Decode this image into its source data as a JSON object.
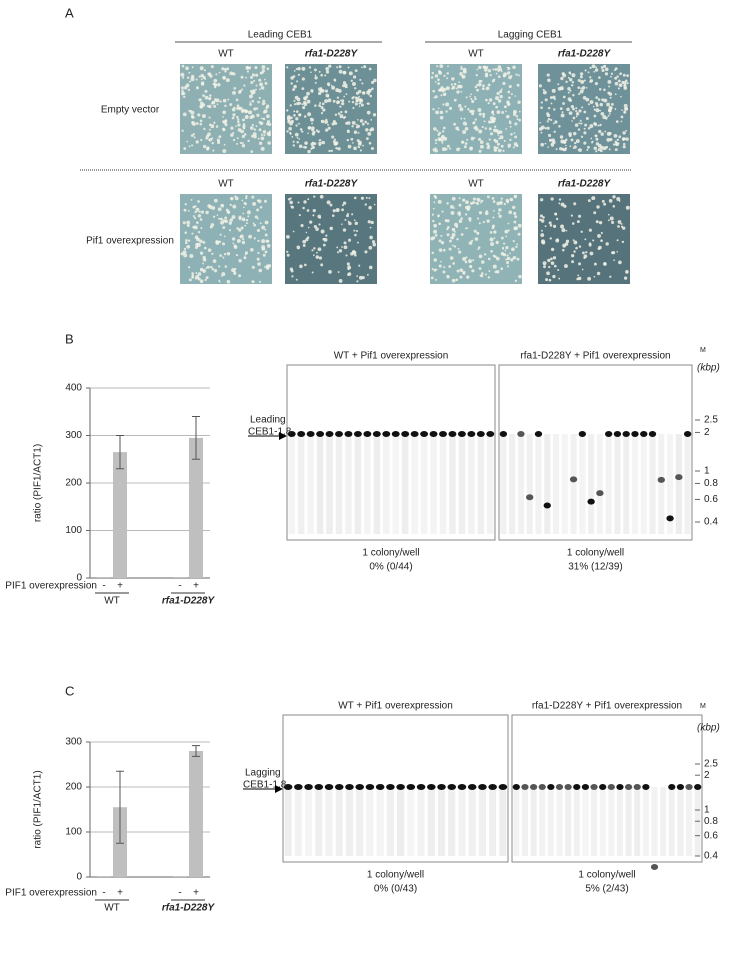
{
  "panel_a": {
    "label": "A",
    "groups": [
      "Leading CEB1",
      "Lagging CEB1"
    ],
    "rows": [
      {
        "label": "Empty vector",
        "columns": [
          "WT",
          "rfa1-D228Y",
          "WT",
          "rfa1-D228Y"
        ]
      },
      {
        "label": "Pif1 overexpression",
        "columns": [
          "WT",
          "rfa1-D228Y",
          "WT",
          "rfa1-D228Y"
        ]
      }
    ]
  },
  "chart_data": [
    {
      "type": "bar",
      "panel": "B",
      "ylabel": "ratio (PIF1/ACT1)",
      "xlabel": "PIF1 overexpression",
      "categories": [
        "-",
        "+",
        "-",
        "+"
      ],
      "groups": [
        "WT",
        "rfa1-D228Y"
      ],
      "values": [
        2,
        265,
        2,
        295
      ],
      "errors": [
        null,
        35,
        null,
        45
      ],
      "color": "#bfbfbf",
      "ylim": [
        0,
        400
      ],
      "yticks": [
        0,
        100,
        200,
        300,
        400
      ],
      "grid": true
    },
    {
      "type": "bar",
      "panel": "C",
      "ylabel": "ratio (PIF1/ACT1)",
      "xlabel": "PIF1 overexpression",
      "categories": [
        "-",
        "+",
        "-",
        "+"
      ],
      "groups": [
        "WT",
        "rfa1-D228Y"
      ],
      "values": [
        2,
        155,
        2,
        280
      ],
      "errors": [
        null,
        80,
        null,
        12
      ],
      "color": "#bfbfbf",
      "ylim": [
        0,
        300
      ],
      "yticks": [
        0,
        100,
        200,
        300
      ],
      "grid": true
    }
  ],
  "gels": [
    {
      "titles": [
        "WT + Pif1 overexpression",
        "rfa1-D228Y + Pif1 overexpression"
      ],
      "marker_title": "M",
      "marker_unit": "(kbp)",
      "markers": [
        2.5,
        2,
        1,
        0.8,
        0.6,
        0.4
      ],
      "band_label": [
        "Leading",
        "CEB1-1.8"
      ],
      "captions": [
        [
          "1 colony/well",
          "0% (0/44)"
        ],
        [
          "1 colony/well",
          "31% (12/39)"
        ]
      ]
    },
    {
      "titles": [
        "WT + Pif1 overexpression",
        "rfa1-D228Y + Pif1 overexpression"
      ],
      "marker_title": "M",
      "marker_unit": "(kbp)",
      "markers": [
        2.5,
        2,
        1,
        0.8,
        0.6,
        0.4
      ],
      "band_label": [
        "Lagging",
        "CEB1-1.8"
      ],
      "captions": [
        [
          "1 colony/well",
          "0% (0/43)"
        ],
        [
          "1 colony/well",
          "5% (2/43)"
        ]
      ]
    }
  ]
}
